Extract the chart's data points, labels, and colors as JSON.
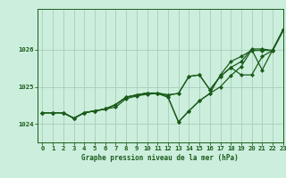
{
  "title": "Graphe pression niveau de la mer (hPa)",
  "background_color": "#cceedd",
  "grid_color": "#aaccbb",
  "line_color": "#1a5c1a",
  "xlim": [
    -0.5,
    23
  ],
  "ylim": [
    1023.5,
    1027.1
  ],
  "yticks": [
    1024,
    1025,
    1026
  ],
  "xticks": [
    0,
    1,
    2,
    3,
    4,
    5,
    6,
    7,
    8,
    9,
    10,
    11,
    12,
    13,
    14,
    15,
    16,
    17,
    18,
    19,
    20,
    21,
    22,
    23
  ],
  "series": [
    [
      1024.3,
      1024.3,
      1024.3,
      1024.15,
      1024.3,
      1024.35,
      1024.4,
      1024.45,
      1024.68,
      1024.75,
      1024.8,
      1024.82,
      1024.72,
      1024.05,
      1024.35,
      1024.62,
      1024.82,
      1025.0,
      1025.3,
      1025.55,
      1026.0,
      1025.45,
      1026.0,
      1026.55
    ],
    [
      1024.3,
      1024.3,
      1024.3,
      1024.15,
      1024.3,
      1024.35,
      1024.4,
      1024.52,
      1024.72,
      1024.78,
      1024.83,
      1024.83,
      1024.78,
      1024.82,
      1025.28,
      1025.32,
      1024.92,
      1025.28,
      1025.52,
      1025.68,
      1026.02,
      1026.02,
      1025.98,
      1026.52
    ],
    [
      1024.3,
      1024.3,
      1024.3,
      1024.15,
      1024.3,
      1024.35,
      1024.4,
      1024.52,
      1024.72,
      1024.78,
      1024.83,
      1024.83,
      1024.72,
      1024.05,
      1024.35,
      1024.62,
      1024.82,
      1025.32,
      1025.68,
      1025.82,
      1025.98,
      1025.98,
      1025.98,
      1026.52
    ],
    [
      1024.3,
      1024.3,
      1024.3,
      1024.15,
      1024.3,
      1024.35,
      1024.4,
      1024.52,
      1024.72,
      1024.78,
      1024.83,
      1024.83,
      1024.78,
      1024.82,
      1025.28,
      1025.32,
      1024.92,
      1025.28,
      1025.52,
      1025.32,
      1025.32,
      1025.82,
      1025.98,
      1026.52
    ]
  ],
  "marker": "D",
  "markersize": 2.0,
  "linewidth": 0.9,
  "tick_labelsize": 5.2,
  "xlabel_fontsize": 5.5
}
